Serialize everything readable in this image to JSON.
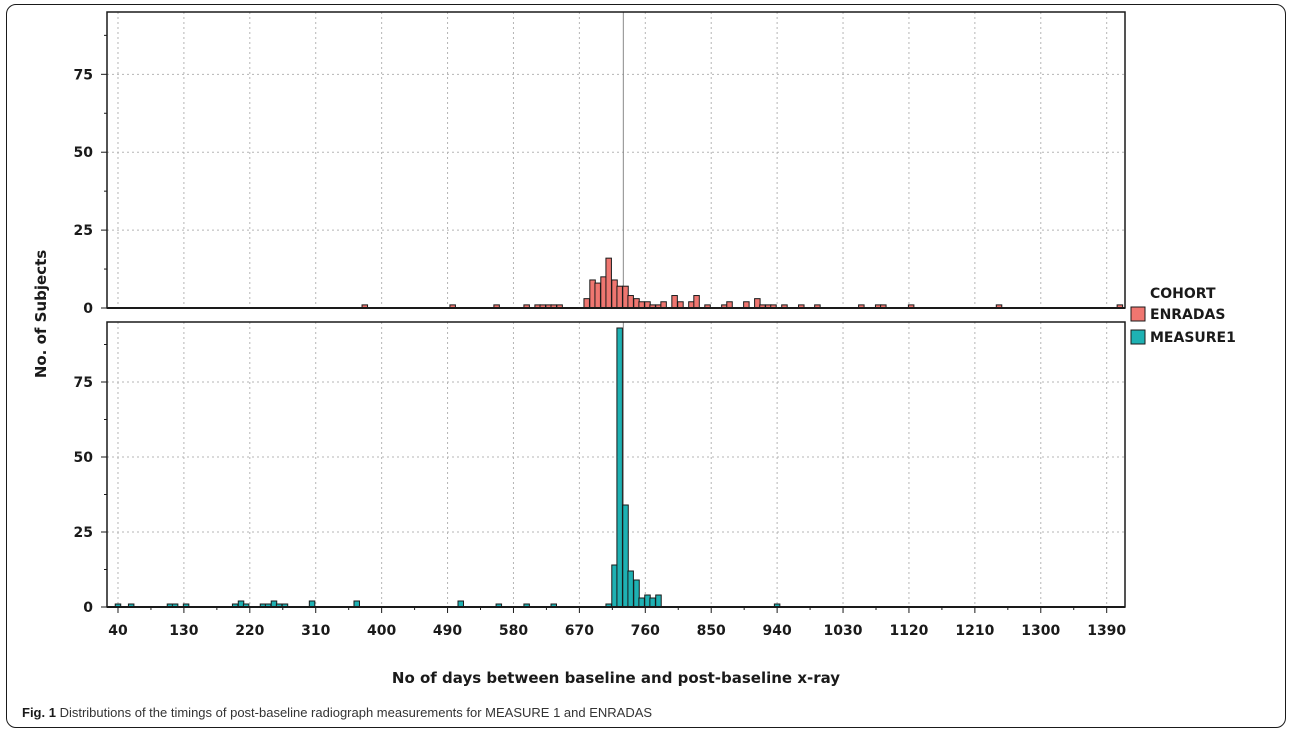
{
  "caption": {
    "label": "Fig. 1",
    "text": "Distributions of the timings of post-baseline radiograph measurements for MEASURE 1 and ENRADAS"
  },
  "legend": {
    "title": "COHORT",
    "items": [
      {
        "label": "ENRADAS",
        "color": "#ef7670"
      },
      {
        "label": "MEASURE1",
        "color": "#1eb1b3"
      }
    ]
  },
  "chart_data": {
    "type": "bar",
    "xlabel": "No of days between baseline and post-baseline x-ray",
    "ylabel": "No. of  Subjects",
    "xlim": [
      25,
      1415
    ],
    "ylim": [
      0,
      95
    ],
    "x_ticks": [
      40,
      130,
      220,
      310,
      400,
      490,
      580,
      670,
      760,
      850,
      940,
      1030,
      1120,
      1210,
      1300,
      1390
    ],
    "y_ticks": [
      0,
      25,
      50,
      75
    ],
    "bin_width": 7.5,
    "reference_line_x": 730,
    "grid": true,
    "legend_position": "right",
    "series": [
      {
        "name": "ENRADAS",
        "color": "#ef7670",
        "x": [
          377,
          497,
          557,
          598,
          613,
          620,
          628,
          635,
          643,
          680,
          688,
          695,
          703,
          710,
          718,
          725,
          733,
          740,
          748,
          755,
          763,
          770,
          778,
          785,
          800,
          808,
          823,
          830,
          845,
          868,
          875,
          898,
          913,
          920,
          928,
          935,
          950,
          973,
          995,
          1055,
          1078,
          1085,
          1123,
          1243,
          1408
        ],
        "values": [
          1,
          1,
          1,
          1,
          1,
          1,
          1,
          1,
          1,
          3,
          9,
          8,
          10,
          16,
          9,
          7,
          7,
          4,
          3,
          2,
          2,
          1,
          1,
          2,
          4,
          2,
          2,
          4,
          1,
          1,
          2,
          2,
          3,
          1,
          1,
          1,
          1,
          1,
          1,
          1,
          1,
          1,
          1,
          1,
          1
        ]
      },
      {
        "name": "MEASURE1",
        "color": "#1eb1b3",
        "x": [
          40,
          58,
          111,
          118,
          133,
          200,
          208,
          215,
          238,
          245,
          253,
          260,
          268,
          305,
          366,
          508,
          560,
          598,
          635,
          710,
          718,
          725,
          733,
          740,
          748,
          755,
          763,
          770,
          778,
          940
        ],
        "values": [
          1,
          1,
          1,
          1,
          1,
          1,
          2,
          1,
          1,
          1,
          2,
          1,
          1,
          2,
          2,
          2,
          1,
          1,
          1,
          1,
          14,
          93,
          34,
          12,
          9,
          3,
          4,
          3,
          4,
          1
        ]
      }
    ]
  }
}
